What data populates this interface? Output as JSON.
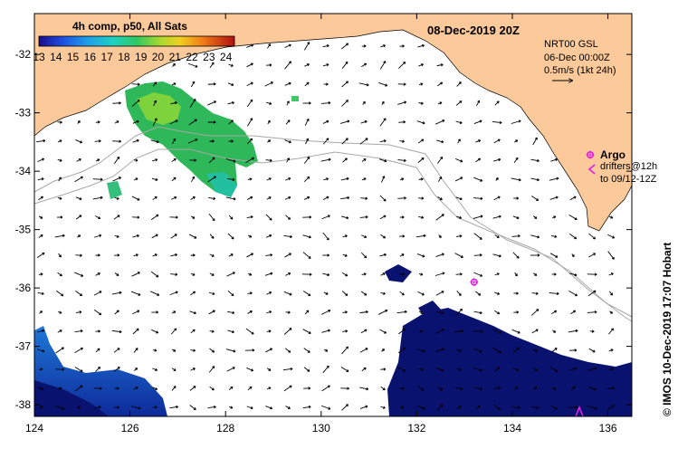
{
  "title": "08-Dec-2019 20Z",
  "colorbar": {
    "title": "4h comp, p50, All Sats",
    "ticks": [
      "13",
      "14",
      "15",
      "16",
      "17",
      "18",
      "19",
      "20",
      "21",
      "22",
      "23",
      "24"
    ],
    "range": [
      13,
      24.5
    ]
  },
  "info": {
    "line1": "NRT00 GSL",
    "line2": "06-Dec 00:00Z",
    "line3": "0.5m/s (1kt 24h)"
  },
  "legend": {
    "argo": "Argo",
    "drifters": "drifters@12h",
    "to": "to 09/12-12Z"
  },
  "credit": "© IMOS 10-Dec-2019 17:07 Hobart",
  "axes": {
    "lon_ticks": [
      "124",
      "126",
      "128",
      "130",
      "132",
      "134",
      "136"
    ],
    "lat_ticks": [
      "-32",
      "-33",
      "-34",
      "-35",
      "-36",
      "-37",
      "-38"
    ],
    "lon_range": [
      124,
      136.5
    ],
    "lat_range": [
      -31.3,
      -38.2
    ]
  },
  "argo_float": {
    "lon": 133.2,
    "lat": -35.9
  },
  "colors": {
    "land": "#fbc99a",
    "sea": "#ffffff",
    "isobath": "#a8a8a8",
    "argo": "#e020e0",
    "cold": "#0a1270"
  }
}
